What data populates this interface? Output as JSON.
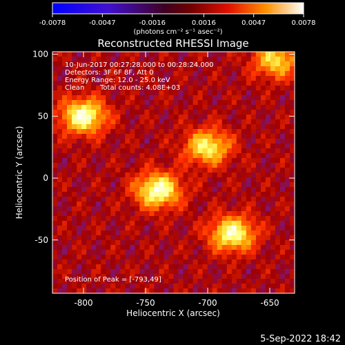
{
  "colorbar": {
    "ticks": [
      "-0.0078",
      "-0.0047",
      "-0.0016",
      "0.0016",
      "0.0047",
      "0.0078"
    ],
    "tick_values": [
      -0.0078,
      -0.0047,
      -0.0016,
      0.0016,
      0.0047,
      0.0078
    ],
    "range": [
      -0.0078,
      0.0078
    ],
    "units": "(photons cm⁻² s⁻¹ asec⁻²)"
  },
  "chart_data": {
    "type": "heatmap",
    "title": "Reconstructed RHESSI Image",
    "xlabel": "Heliocentric X (arcsec)",
    "ylabel": "Heliocentric Y (arcsec)",
    "xlim": [
      -825,
      -630
    ],
    "ylim": [
      -93,
      102
    ],
    "xticks": [
      "-800",
      "-750",
      "-700",
      "-650"
    ],
    "xtick_values": [
      -800,
      -750,
      -700,
      -650
    ],
    "yticks": [
      "100",
      "50",
      "0",
      "-50"
    ],
    "ytick_values": [
      100,
      50,
      0,
      -50
    ],
    "sources": [
      {
        "x": -800,
        "y": 50,
        "peak": 0.007
      },
      {
        "x": -740,
        "y": -10,
        "peak": 0.007
      },
      {
        "x": -700,
        "y": 25,
        "peak": 0.0055
      },
      {
        "x": -680,
        "y": -45,
        "peak": 0.0065
      },
      {
        "x": -645,
        "y": 95,
        "peak": 0.0045
      }
    ],
    "annotations": [
      "10-Jun-2017 00:27:28.000 to 00:28:24.000",
      "Detectors: 3F 6F 8F, Att 0",
      "Energy Range: 12.0 - 25.0 keV",
      "Clean",
      "Total counts: 4.08E+03",
      "Position of Peak = [-793,49]"
    ],
    "colormap": [
      "#0000ff",
      "#7020b0",
      "#a00000",
      "#ff3000",
      "#ffa000",
      "#ffff60",
      "#ffffff"
    ]
  },
  "footer": {
    "date": "5-Sep-2022 18:42"
  }
}
